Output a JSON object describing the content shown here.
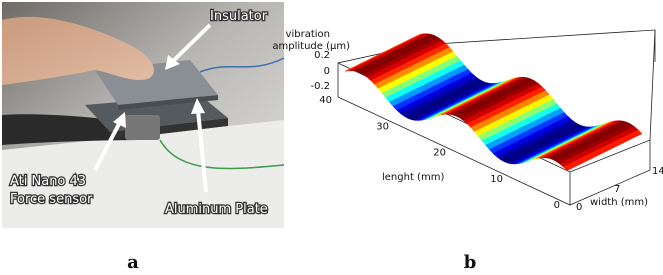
{
  "panel_a": {
    "labels": {
      "insulator": "Insulator",
      "sensor_line1": "Ati Nano 43",
      "sensor_line2": "Force sensor",
      "plate": "Aluminum Plate"
    },
    "caption": "a"
  },
  "panel_b": {
    "z_label_line1": "vibration",
    "z_label_line2": "amplitude (μm)",
    "z_ticks": [
      0.2,
      0,
      -0.2
    ],
    "length_label": "lenght (mm)",
    "length_ticks": [
      40,
      30,
      20,
      10,
      0
    ],
    "width_label": "width (mm)",
    "width_ticks": [
      0,
      7,
      14
    ],
    "caption": "b"
  }
}
